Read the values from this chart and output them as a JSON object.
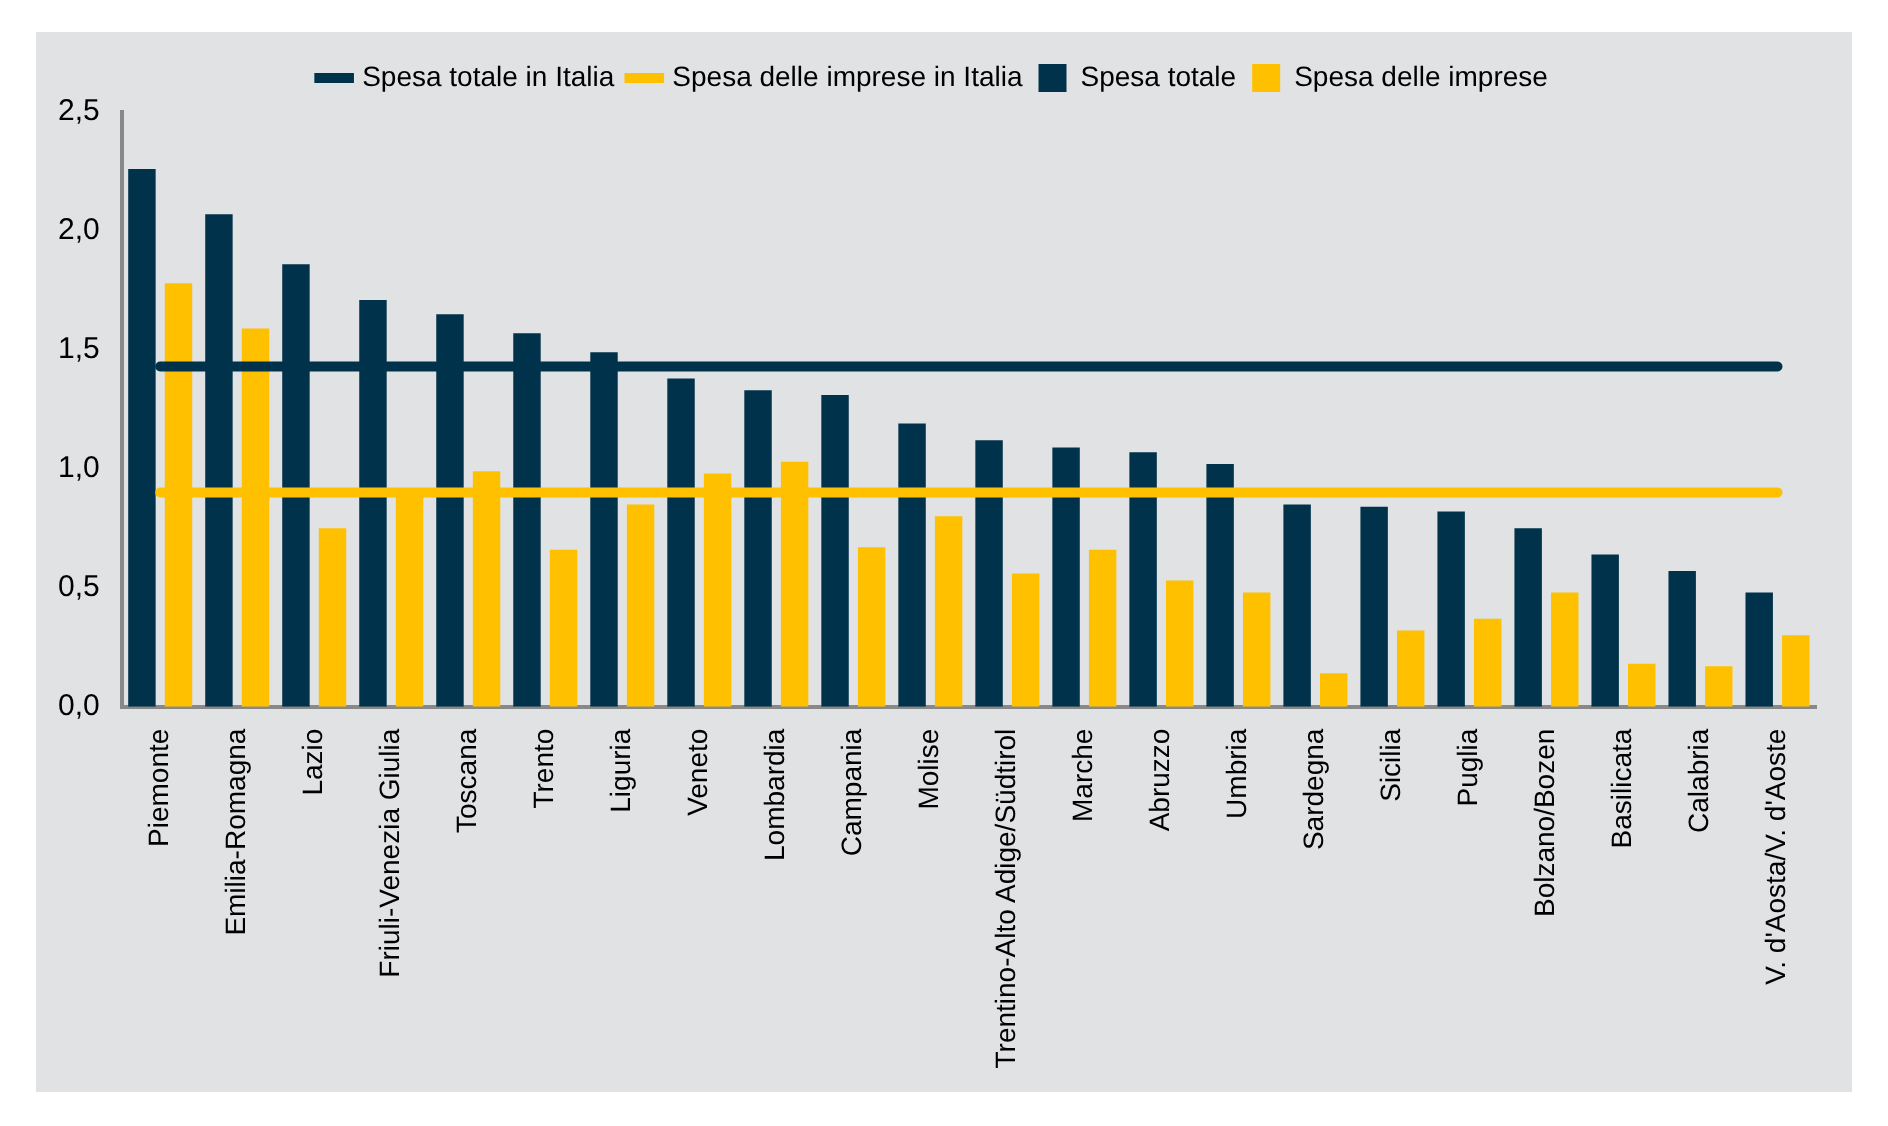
{
  "chart_data": {
    "type": "bar",
    "categories": [
      "Piemonte",
      "Emilia-Romagna",
      "Lazio",
      "Friuli-Venezia Giulia",
      "Toscana",
      "Trento",
      "Liguria",
      "Veneto",
      "Lombardia",
      "Campania",
      "Molise",
      "Trentino-Alto Adige/Südtirol",
      "Marche",
      "Abruzzo",
      "Umbria",
      "Sardegna",
      "Sicilia",
      "Puglia",
      "Bolzano/Bozen",
      "Basilicata",
      "Calabria",
      "V. d'Aosta/V. d'Aoste"
    ],
    "series": [
      {
        "name": "Spesa totale",
        "color": "#00324b",
        "values": [
          2.26,
          2.07,
          1.86,
          1.71,
          1.65,
          1.57,
          1.49,
          1.38,
          1.33,
          1.31,
          1.19,
          1.12,
          1.09,
          1.07,
          1.02,
          0.85,
          0.84,
          0.82,
          0.75,
          0.64,
          0.57,
          0.48
        ]
      },
      {
        "name": "Spesa delle imprese",
        "color": "#ffc000",
        "values": [
          1.78,
          1.59,
          0.75,
          0.91,
          0.99,
          0.66,
          0.85,
          0.98,
          1.03,
          0.67,
          0.8,
          0.56,
          0.66,
          0.53,
          0.48,
          0.14,
          0.32,
          0.37,
          0.48,
          0.18,
          0.17,
          0.3
        ]
      },
      {
        "name": "Spesa totale in Italia",
        "type": "line",
        "color": "#00324b",
        "values": [
          1.43,
          1.43,
          1.43,
          1.43,
          1.43,
          1.43,
          1.43,
          1.43,
          1.43,
          1.43,
          1.43,
          1.43,
          1.43,
          1.43,
          1.43,
          1.43,
          1.43,
          1.43,
          1.43,
          1.43,
          1.43,
          1.43
        ]
      },
      {
        "name": "Spesa delle imprese in Italia",
        "type": "line",
        "color": "#ffc000",
        "values": [
          0.9,
          0.9,
          0.9,
          0.9,
          0.9,
          0.9,
          0.9,
          0.9,
          0.9,
          0.9,
          0.9,
          0.9,
          0.9,
          0.9,
          0.9,
          0.9,
          0.9,
          0.9,
          0.9,
          0.9,
          0.9,
          0.9
        ]
      }
    ],
    "ylim": [
      0,
      2.5
    ],
    "yticks": [
      {
        "value": 0,
        "label": "0,0"
      },
      {
        "value": 0.5,
        "label": "0,5"
      },
      {
        "value": 1,
        "label": "1,0"
      },
      {
        "value": 1.5,
        "label": "1,5"
      },
      {
        "value": 2,
        "label": "2,0"
      },
      {
        "value": 2.5,
        "label": "2,5"
      }
    ],
    "grid": false,
    "legend": "top",
    "marker": "none"
  }
}
